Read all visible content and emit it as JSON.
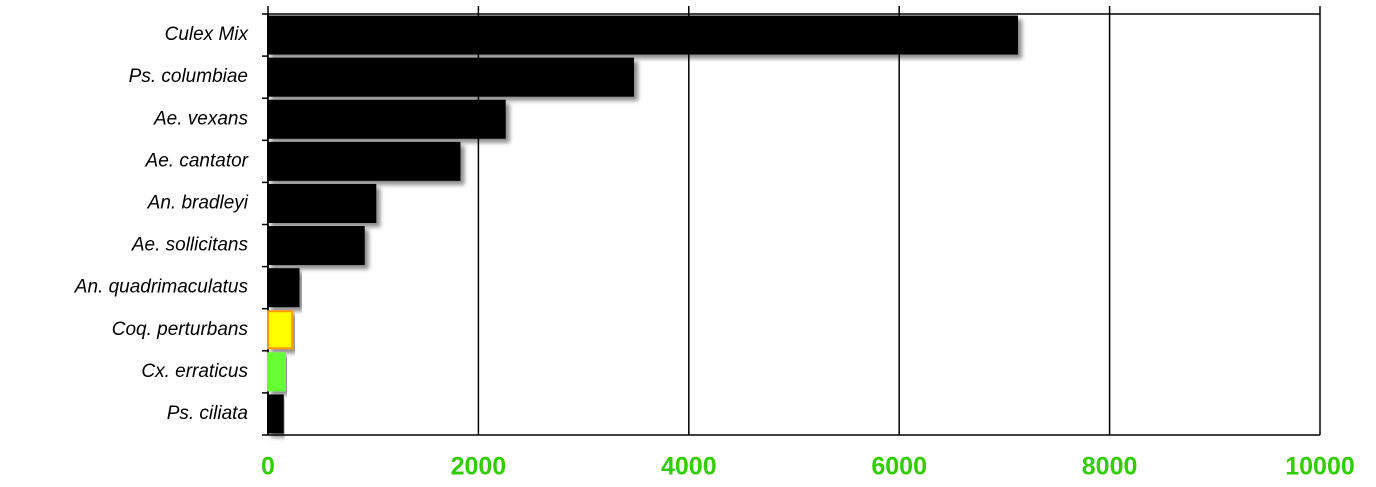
{
  "chart_data": {
    "type": "barh",
    "categories": [
      "Culex Mix",
      "Ps. columbiae",
      "Ae. vexans",
      "Ae. cantator",
      "An. bradleyi",
      "Ae. sollicitans",
      "An. quadrimaculatus",
      "Coq. perturbans",
      "Cx. erraticus",
      "Ps. ciliata"
    ],
    "values": [
      7120,
      3470,
      2250,
      1820,
      1020,
      910,
      290,
      230,
      160,
      140
    ],
    "colors": [
      "#000000",
      "#000000",
      "#000000",
      "#000000",
      "#000000",
      "#000000",
      "#000000",
      "#ffff00",
      "#66ff33",
      "#000000"
    ],
    "edgecolors": [
      "#000000",
      "#000000",
      "#000000",
      "#000000",
      "#000000",
      "#000000",
      "#000000",
      "#ff9900",
      "#66ff33",
      "#000000"
    ],
    "xlim": [
      0,
      10000
    ],
    "xticks": [
      0,
      2000,
      4000,
      6000,
      8000,
      10000
    ],
    "grid": true,
    "tick_color": "#33cc00"
  }
}
